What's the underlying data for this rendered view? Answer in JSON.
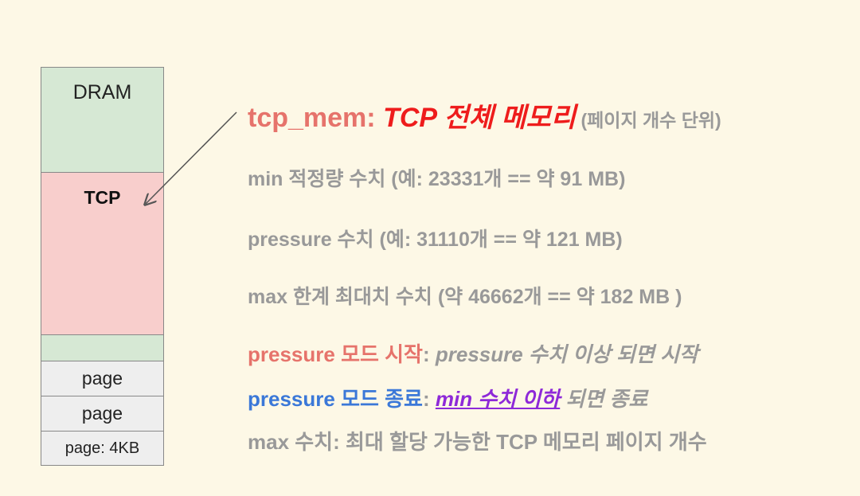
{
  "stack": {
    "dram": "DRAM",
    "tcp": "TCP",
    "page1": "page",
    "page2": "page",
    "page3": "page: 4KB"
  },
  "text": {
    "title_key": "tcp_mem: ",
    "title_value": "TCP 전체 메모리",
    "title_unit": " (페이지 개수 단위)",
    "min_line": "min 적정량 수치 (예: 23331개 == 약 91 MB)",
    "pressure_line": "pressure  수치 (예: 31110개 == 약 121 MB)",
    "max_line": "max 한계 최대치 수치 (약 46662개 == 약 182 MB )",
    "start_label": "pressure 모드 시작",
    "start_colon": ": ",
    "start_desc": "pressure 수치 이상 되면 시작",
    "end_label": "pressure 모드 종료",
    "end_colon": ": ",
    "end_link": "min 수치 이하",
    "end_desc": " 되면 종료",
    "max_desc": "max 수치: 최대 할당 가능한 TCP 메모리 페이지 개수"
  },
  "colors": {
    "background": "#fdf8e6",
    "dram": "#d6e8d4",
    "tcp": "#f8cecc",
    "page": "#eeeeee",
    "accent_red": "#ee1c1c",
    "salmon": "#e6736b",
    "blue": "#3b78d8",
    "purple": "#8e29d8",
    "gray": "#999999"
  }
}
